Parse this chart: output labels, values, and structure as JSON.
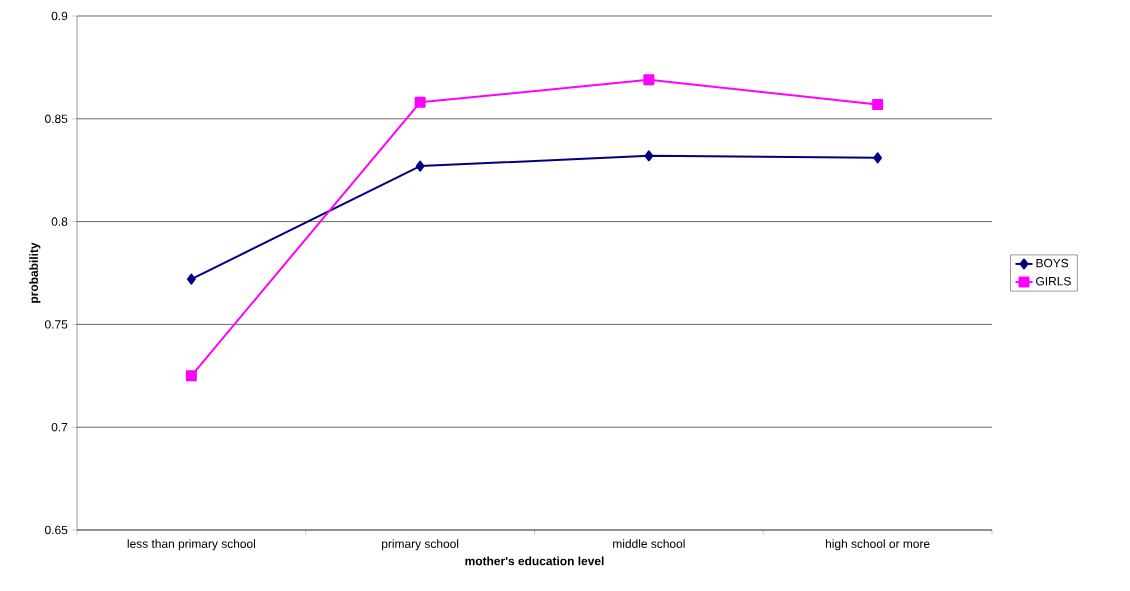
{
  "chart_data": {
    "type": "line",
    "xlabel": "mother's education level",
    "ylabel": "probability",
    "categories": [
      "less than primary school",
      "primary school",
      "middle school",
      "high school or more"
    ],
    "series": [
      {
        "name": "BOYS",
        "color": "#000080",
        "marker": "diamond",
        "values": [
          0.772,
          0.827,
          0.832,
          0.831
        ]
      },
      {
        "name": "GIRLS",
        "color": "#ff00ff",
        "marker": "square",
        "values": [
          0.725,
          0.858,
          0.869,
          0.857
        ]
      }
    ],
    "ylim": [
      0.65,
      0.9
    ],
    "yticks": [
      0.65,
      0.7,
      0.75,
      0.8,
      0.85,
      0.9
    ],
    "grid": "y",
    "legend": "right"
  }
}
